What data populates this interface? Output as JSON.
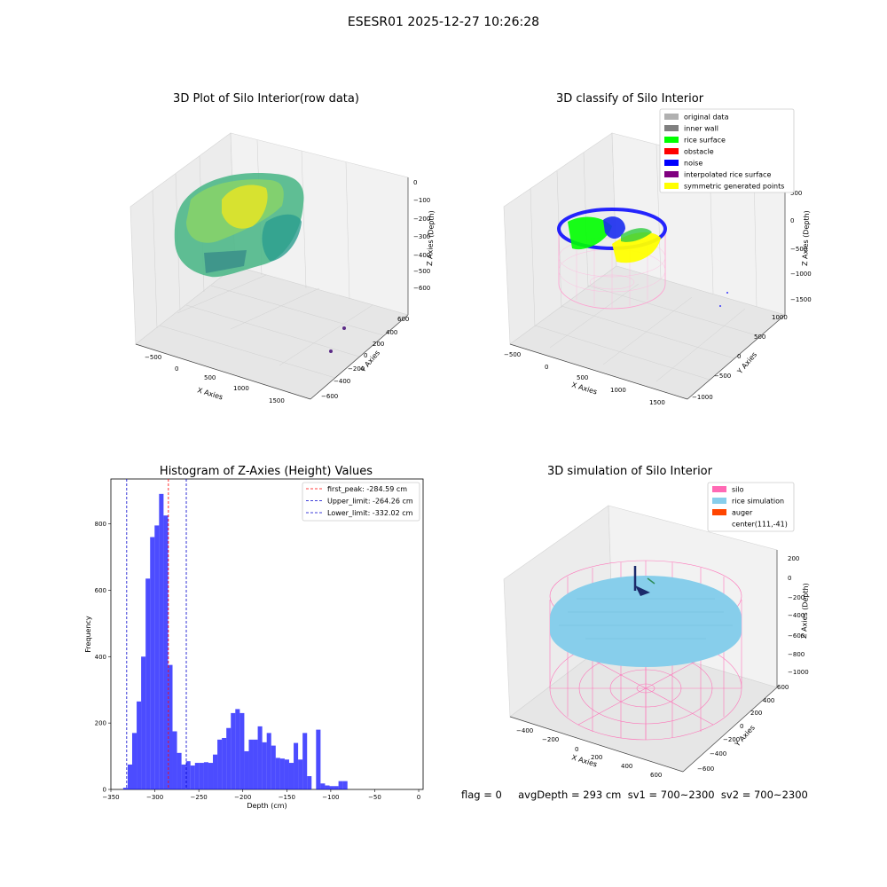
{
  "figure": {
    "title": "ESESR01 2025-12-27 10:26:28"
  },
  "panels": {
    "raw": {
      "title": "3D Plot of Silo Interior(row data)",
      "xlabel": "X Axies",
      "ylabel": "Y Axies",
      "zlabel": "Z Axies (Depth)",
      "xticks": [
        "−500",
        "0",
        "500",
        "1000",
        "1500"
      ],
      "yticks": [
        "600",
        "400",
        "200",
        "0",
        "−200",
        "−400",
        "−600"
      ],
      "zticks": [
        "0",
        "−100",
        "−200",
        "−300",
        "−400",
        "−500",
        "−600"
      ]
    },
    "classify": {
      "title": "3D classify of Silo Interior",
      "xlabel": "X Axies",
      "ylabel": "Y Axies",
      "zlabel": "Z Axies (Depth)",
      "xticks": [
        "−500",
        "0",
        "500",
        "1000",
        "1500"
      ],
      "yticks": [
        "1000",
        "500",
        "0",
        "−500",
        "−1000"
      ],
      "zticks": [
        "500",
        "0",
        "−500",
        "−1000",
        "−1500"
      ],
      "legend": [
        {
          "label": "original data",
          "color": "#b0b0b0"
        },
        {
          "label": "inner wall",
          "color": "#808080"
        },
        {
          "label": "rice surface",
          "color": "#00ff00"
        },
        {
          "label": "obstacle",
          "color": "#ff0000"
        },
        {
          "label": "noise",
          "color": "#0000ff"
        },
        {
          "label": "interpolated rice surface",
          "color": "#800080"
        },
        {
          "label": "symmetric generated points",
          "color": "#ffff00"
        }
      ]
    },
    "simulation": {
      "title": "3D simulation of Silo Interior",
      "xlabel": "X Axies",
      "ylabel": "Y Axies",
      "zlabel": "Z Axies (Depth)",
      "xticks": [
        "−400",
        "−200",
        "0",
        "200",
        "400",
        "600"
      ],
      "yticks": [
        "600",
        "400",
        "200",
        "0",
        "−200",
        "−400",
        "−600"
      ],
      "zticks": [
        "200",
        "0",
        "−200",
        "−400",
        "−600",
        "−800",
        "−1000"
      ],
      "legend": [
        {
          "label": "silo",
          "color": "#ff69b4"
        },
        {
          "label": "rice simulation",
          "color": "#87ceeb"
        },
        {
          "label": "auger",
          "color": "#ff4500"
        },
        {
          "label": "center(111,-41)",
          "color": ""
        }
      ]
    }
  },
  "chart_data": {
    "type": "bar",
    "title": "Histogram of Z-Axies (Height) Values",
    "xlabel": "Depth (cm)",
    "ylabel": "Frequency",
    "xlim": [
      -350,
      5
    ],
    "ylim": [
      0,
      935
    ],
    "bar_color": "#0000ff",
    "bin_start": -336,
    "bin_width": 5.1,
    "values": [
      5,
      75,
      170,
      265,
      400,
      635,
      760,
      795,
      890,
      825,
      375,
      175,
      110,
      75,
      85,
      72,
      80,
      80,
      82,
      80,
      105,
      150,
      155,
      185,
      230,
      242,
      230,
      115,
      150,
      150,
      190,
      142,
      170,
      132,
      95,
      93,
      90,
      80,
      140,
      90,
      170,
      40,
      0,
      180,
      18,
      12,
      10,
      10,
      25,
      25
    ],
    "xticks": [
      -350,
      -300,
      -250,
      -200,
      -150,
      -100,
      -50,
      0
    ],
    "xtick_labels": [
      "−350",
      "−300",
      "−250",
      "−200",
      "−150",
      "−100",
      "−50",
      "0"
    ],
    "yticks": [
      0,
      200,
      400,
      600,
      800
    ],
    "ytick_labels": [
      "0",
      "200",
      "400",
      "600",
      "800"
    ],
    "vlines": [
      {
        "x": -284.59,
        "color": "#ff0000",
        "label": "first_peak: -284.59 cm"
      },
      {
        "x": -264.26,
        "color": "#0000cd",
        "label": "Upper_limit: -264.26 cm"
      },
      {
        "x": -332.02,
        "color": "#0000cd",
        "label": "Lower_limit: -332.02 cm"
      }
    ],
    "legend_position": "upper right"
  },
  "footer": {
    "text": "flag = 0     avgDepth = 293 cm  sv1 = 700~2300  sv2 = 700~2300"
  }
}
